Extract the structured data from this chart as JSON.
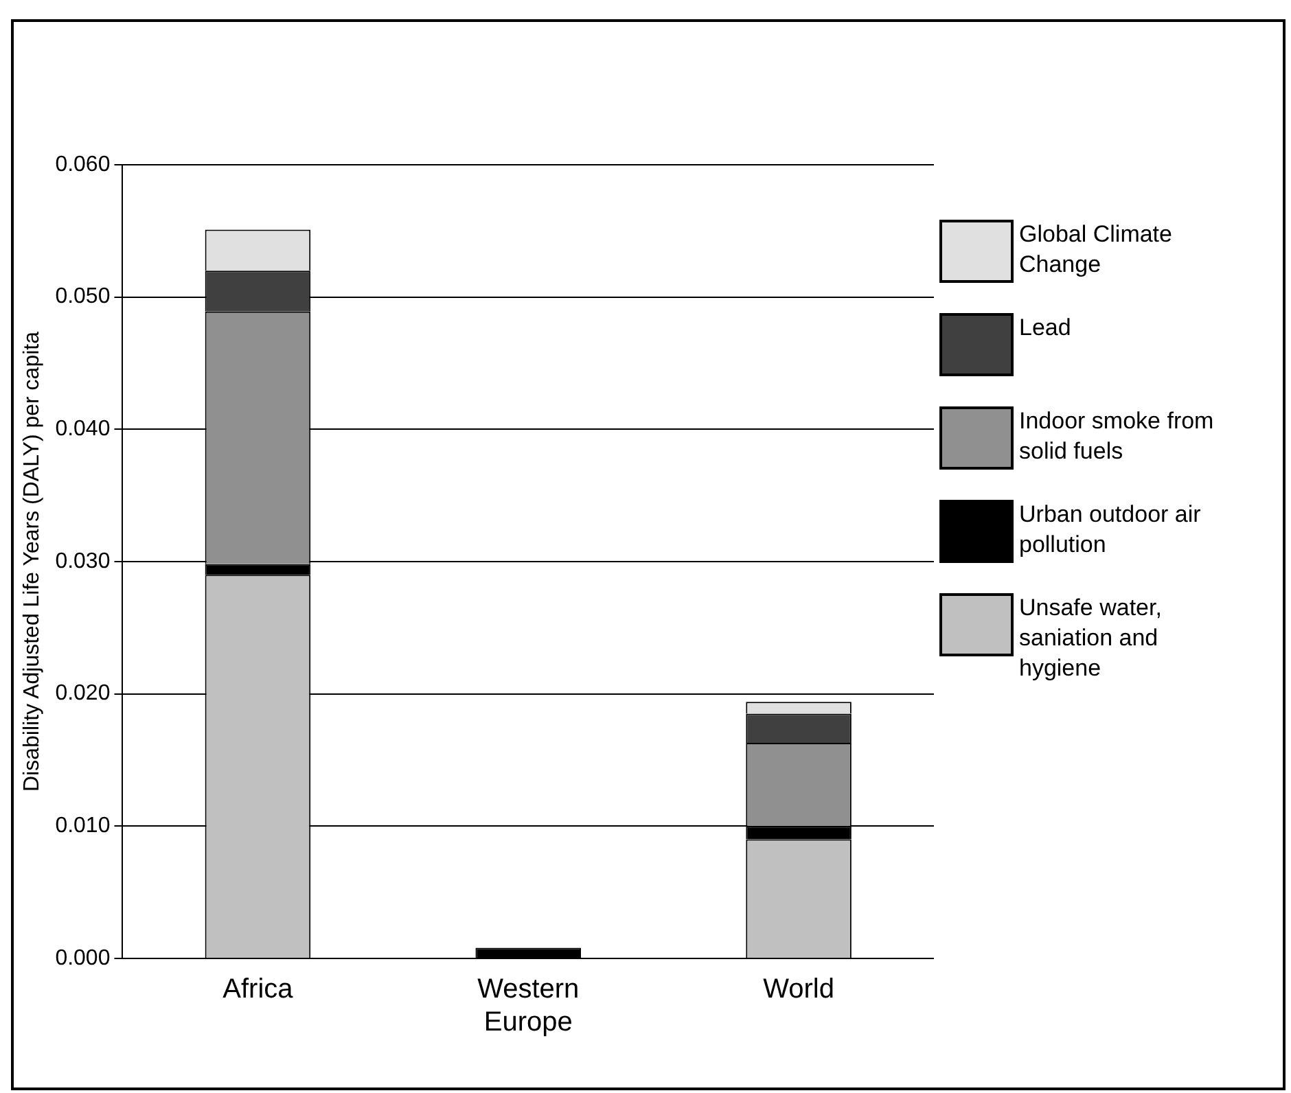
{
  "chart_data": {
    "type": "bar",
    "stacked": true,
    "ylabel": "Disability Adjusted Life Years (DALY) per capita",
    "categories": [
      "Africa",
      "Western Europe",
      "World"
    ],
    "series": [
      {
        "name": "Unsafe water, saniation and hygiene",
        "color": "#c0c0c0",
        "values": [
          0.029,
          0,
          0.009
        ]
      },
      {
        "name": "Urban outdoor air pollution",
        "color": "#000000",
        "values": [
          0.0008,
          0.0008,
          0.001
        ]
      },
      {
        "name": "Indoor smoke from solid fuels",
        "color": "#909090",
        "values": [
          0.0191,
          0,
          0.0063
        ]
      },
      {
        "name": "Lead",
        "color": "#404040",
        "values": [
          0.0031,
          0,
          0.0022
        ]
      },
      {
        "name": "Global Climate Change",
        "color": "#e0e0e0",
        "values": [
          0.0031,
          0,
          0.0009
        ]
      }
    ],
    "ylim": [
      0,
      0.06
    ],
    "yticks": [
      {
        "value": 0,
        "label": "0.000"
      },
      {
        "value": 0.01,
        "label": "0.010"
      },
      {
        "value": 0.02,
        "label": "0.020"
      },
      {
        "value": 0.03,
        "label": "0.030"
      },
      {
        "value": 0.04,
        "label": "0.040"
      },
      {
        "value": 0.05,
        "label": "0.050"
      },
      {
        "value": 0.06,
        "label": "0.060"
      }
    ],
    "grid": "y",
    "legend": "right"
  }
}
